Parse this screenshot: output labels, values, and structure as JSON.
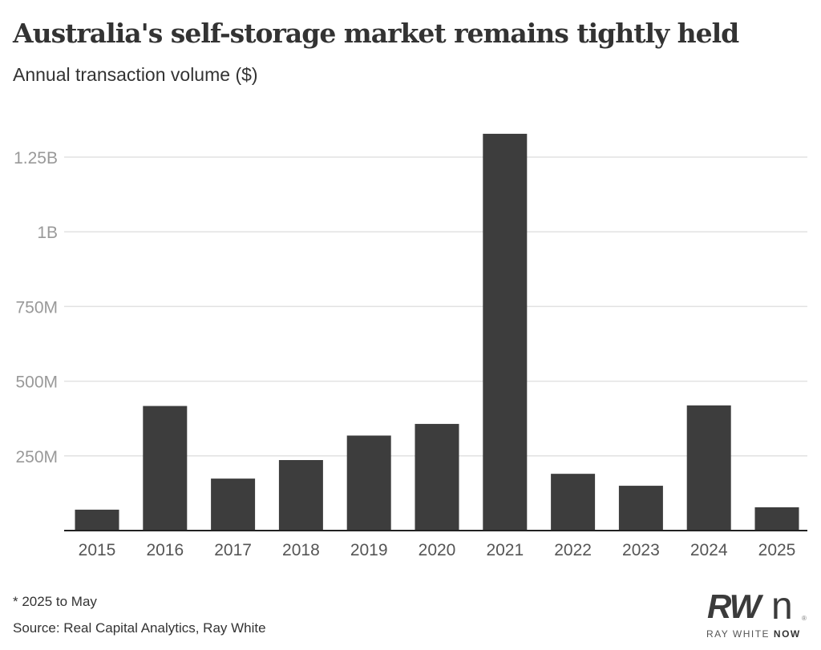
{
  "chart_data": {
    "type": "bar",
    "title": "Australia's self-storage market remains tightly held",
    "subtitle": "Annual transaction volume ($)",
    "categories": [
      "2015",
      "2016",
      "2017",
      "2018",
      "2019",
      "2020",
      "2021",
      "2022",
      "2023",
      "2024",
      "2025"
    ],
    "values": [
      70000000,
      417000000,
      174000000,
      236000000,
      318000000,
      357000000,
      1328000000,
      190000000,
      150000000,
      419000000,
      78000000
    ],
    "ylim": [
      0,
      1250000000
    ],
    "yticks": [
      250000000,
      500000000,
      750000000,
      1000000000,
      1250000000
    ],
    "ytick_labels": [
      "250M",
      "500M",
      "750M",
      "1B",
      "1.25B"
    ],
    "xlabel": "",
    "ylabel": "",
    "grid": true,
    "bar_color": "#3d3d3d",
    "note": "* 2025 to May",
    "source": "Source: Real Capital Analytics, Ray White"
  },
  "logo": {
    "mark": "RW",
    "n": "n",
    "name_light": "RAY WHITE ",
    "name_bold": "NOW"
  }
}
